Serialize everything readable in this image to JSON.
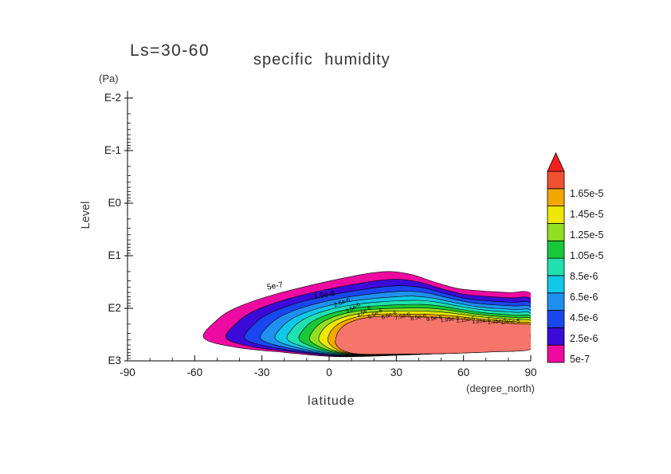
{
  "header": {
    "ls_label": "Ls=30-60",
    "title": "specific humidity"
  },
  "y_axis": {
    "unit": "(Pa)",
    "label": "Level",
    "tick_labels": [
      "E-2",
      "E-1",
      "E0",
      "E1",
      "E2",
      "E3"
    ],
    "tick_exponents": [
      -2,
      -1,
      0,
      1,
      2,
      3
    ]
  },
  "x_axis": {
    "label": "latitude",
    "unit": "(degree_north)",
    "tick_labels": [
      "-90",
      "-60",
      "-30",
      "0",
      "30",
      "60",
      "90"
    ],
    "tick_values": [
      -90,
      -60,
      -30,
      0,
      30,
      60,
      90
    ],
    "minor_step": 10
  },
  "colorbar": {
    "labels": [
      "5e-7",
      "2.5e-6",
      "4.5e-6",
      "6.5e-6",
      "8.5e-6",
      "1.05e-5",
      "1.25e-5",
      "1.45e-5",
      "1.65e-5"
    ],
    "band_colors_bottom_to_top": [
      "#ee0aa0",
      "#3c0ad8",
      "#1a46f0",
      "#2090f0",
      "#10c8e8",
      "#20e0b0",
      "#18c838",
      "#90e020",
      "#ece800",
      "#f0a800",
      "#f05030"
    ],
    "arrow_color": "#f02020"
  },
  "chart_data": {
    "type": "heatmap",
    "subtype": "filled_contour",
    "title": "specific humidity",
    "subtitle": "Ls=30-60",
    "xlabel": "latitude (degree_north)",
    "ylabel": "Level (Pa)",
    "x_range": [
      -90,
      90
    ],
    "y_log10_pa_range": [
      -2,
      3
    ],
    "legend_levels": [
      5e-07,
      2.5e-06,
      4.5e-06,
      6.5e-06,
      8.5e-06,
      1.05e-05,
      1.25e-05,
      1.45e-05,
      1.65e-05
    ],
    "legend_position": "right",
    "grid": false,
    "outer_boundary": [
      [
        -56,
        2.56
      ],
      [
        -50,
        2.22
      ],
      [
        -43,
        2.02
      ],
      [
        -33,
        1.85
      ],
      [
        -23,
        1.72
      ],
      [
        -13,
        1.61
      ],
      [
        -3,
        1.51
      ],
      [
        7,
        1.42
      ],
      [
        17,
        1.34
      ],
      [
        27,
        1.3
      ],
      [
        37,
        1.36
      ],
      [
        47,
        1.5
      ],
      [
        57,
        1.62
      ],
      [
        68,
        1.67
      ],
      [
        80,
        1.7
      ],
      [
        90,
        1.72
      ],
      [
        90,
        2.2
      ],
      [
        90,
        2.72
      ],
      [
        71,
        2.8
      ],
      [
        49,
        2.86
      ],
      [
        26,
        2.9
      ],
      [
        3,
        2.92
      ],
      [
        -20,
        2.84
      ],
      [
        -42,
        2.74
      ]
    ],
    "inner_boundary": [
      [
        3,
        2.58
      ],
      [
        4,
        2.45
      ],
      [
        6,
        2.35
      ],
      [
        9,
        2.27
      ],
      [
        13,
        2.21
      ],
      [
        18,
        2.17
      ],
      [
        24,
        2.15
      ],
      [
        31,
        2.15
      ],
      [
        39,
        2.16
      ],
      [
        47,
        2.17
      ],
      [
        55,
        2.19
      ],
      [
        63,
        2.22
      ],
      [
        71,
        2.25
      ],
      [
        79,
        2.28
      ],
      [
        86,
        2.3
      ],
      [
        90,
        2.32
      ],
      [
        90,
        2.55
      ],
      [
        90,
        2.78
      ],
      [
        72,
        2.83
      ],
      [
        52,
        2.86
      ],
      [
        32,
        2.87
      ],
      [
        14,
        2.87
      ],
      [
        6,
        2.8
      ],
      [
        3,
        2.68
      ]
    ],
    "fill_rings": [
      {
        "level": "5e-7",
        "color": "#ee0aa0",
        "t": 0
      },
      {
        "level": "1.5e-6",
        "color": "#3c0ad8",
        "t": 0.17
      },
      {
        "level": "2.5e-6",
        "color": "#1a46f0",
        "t": 0.31
      },
      {
        "level": "3.5e-6",
        "color": "#2090f0",
        "t": 0.43
      },
      {
        "level": "4.5e-6",
        "color": "#10c8e8",
        "t": 0.54
      },
      {
        "level": "5.5e-6",
        "color": "#20e0b0",
        "t": 0.63
      },
      {
        "level": "6.5e-6",
        "color": "#18c838",
        "t": 0.72
      },
      {
        "level": "8.5e-6",
        "color": "#90e020",
        "t": 0.8
      },
      {
        "level": "1.05e-5",
        "color": "#ece800",
        "t": 0.87
      },
      {
        "level": "1.25e-5",
        "color": "#f0a800",
        "t": 0.94
      },
      {
        "level": "1.45e-5",
        "color": "#f5756b",
        "t": 1.0
      }
    ],
    "contour_line_labels": [
      {
        "text": "5e-7",
        "lat": -24,
        "lev": 1.62,
        "rot": -10,
        "size": 10
      },
      {
        "text": "1.5e-6",
        "lat": -2,
        "lev": 1.79,
        "rot": -10,
        "size": 9.5
      },
      {
        "text": "2.5e-6",
        "lat": 6,
        "lev": 1.92,
        "rot": -20,
        "size": 7.5
      },
      {
        "text": "3.5e-6",
        "lat": 11,
        "lev": 2.02,
        "rot": -30,
        "size": 7
      },
      {
        "text": "4.5e-6",
        "lat": 16,
        "lev": 2.09,
        "rot": -35,
        "size": 7
      },
      {
        "text": "5.5e-6",
        "lat": 21,
        "lev": 2.13,
        "rot": -30,
        "size": 7
      },
      {
        "text": "6.5e-6",
        "lat": 27,
        "lev": 2.16,
        "rot": -20,
        "size": 7
      },
      {
        "text": "7.5e-6",
        "lat": 33,
        "lev": 2.18,
        "rot": -15,
        "size": 7
      },
      {
        "text": "8.5e-6",
        "lat": 40,
        "lev": 2.2,
        "rot": -12,
        "size": 7
      },
      {
        "text": "9.5e-6",
        "lat": 47,
        "lev": 2.22,
        "rot": -10,
        "size": 7
      },
      {
        "text": "1.05e-5",
        "lat": 54,
        "lev": 2.24,
        "rot": -8,
        "size": 7
      },
      {
        "text": "1.15e-5",
        "lat": 61,
        "lev": 2.25,
        "rot": -8,
        "size": 7
      },
      {
        "text": "1.25e-5",
        "lat": 68,
        "lev": 2.27,
        "rot": -6,
        "size": 7
      },
      {
        "text": "1.35e-5",
        "lat": 75,
        "lev": 2.28,
        "rot": -6,
        "size": 7
      },
      {
        "text": "1.45e-5",
        "lat": 81,
        "lev": 2.29,
        "rot": -5,
        "size": 7
      }
    ]
  }
}
